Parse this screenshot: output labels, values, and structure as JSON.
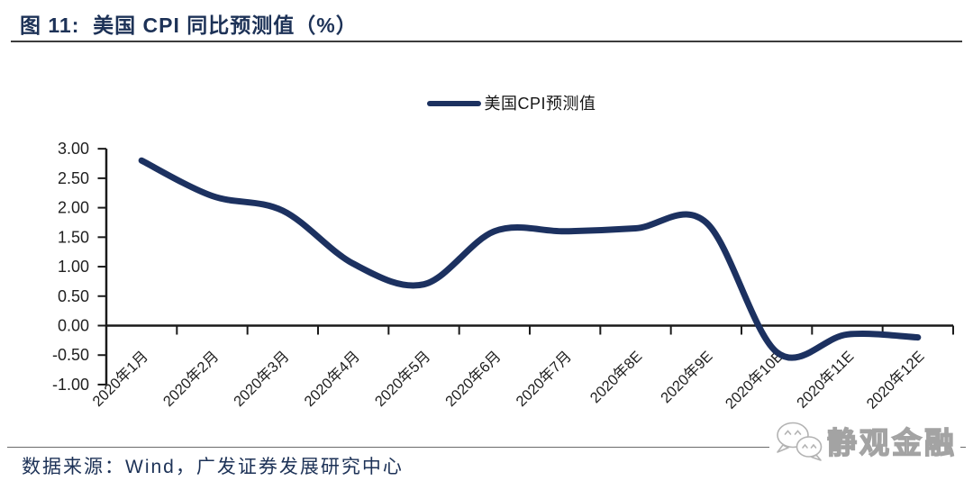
{
  "header": {
    "title": "图 11:  美国 CPI 同比预测值（%）"
  },
  "legend": {
    "items": [
      {
        "label": "美国CPI预测值",
        "color": "#1c3160"
      }
    ]
  },
  "chart_data": {
    "type": "line",
    "title": "美国CPI同比预测值（%）",
    "categories": [
      "2020年1月",
      "2020年2月",
      "2020年3月",
      "2020年4月",
      "2020年5月",
      "2020年6月",
      "2020年7月",
      "2020年8E",
      "2020年9E",
      "2020年10E",
      "2020年11E",
      "2020年12E"
    ],
    "series": [
      {
        "name": "美国CPI预测值",
        "color": "#1c3160",
        "values": [
          2.8,
          2.2,
          1.95,
          1.05,
          0.7,
          1.6,
          1.6,
          1.65,
          1.75,
          -0.45,
          -0.15,
          -0.2
        ]
      }
    ],
    "xlabel": "",
    "ylabel": "",
    "ylim": [
      -1.0,
      3.0
    ],
    "ytick_step": 0.5,
    "ytick_labels": [
      "3.00",
      "2.50",
      "2.00",
      "1.50",
      "1.00",
      "0.50",
      "0.00",
      "-0.50",
      "-1.00"
    ],
    "grid": false,
    "smooth": true,
    "legend_position": "top-center",
    "x_label_rotation_deg": 45
  },
  "footer": {
    "source": "数据来源：Wind，广发证券发展研究中心"
  },
  "watermark": {
    "label": "静观金融",
    "icon": "wechat-icon"
  },
  "colors": {
    "line": "#1c3160",
    "title_text": "#1d3257",
    "source_text": "#1d3257",
    "axis": "#1a1a1a",
    "tick_label": "#1f1f1f",
    "title_rule": "#3c3c3c",
    "footer_rule": "#6b6b6b",
    "watermark_outline": "#a3a3a3"
  }
}
